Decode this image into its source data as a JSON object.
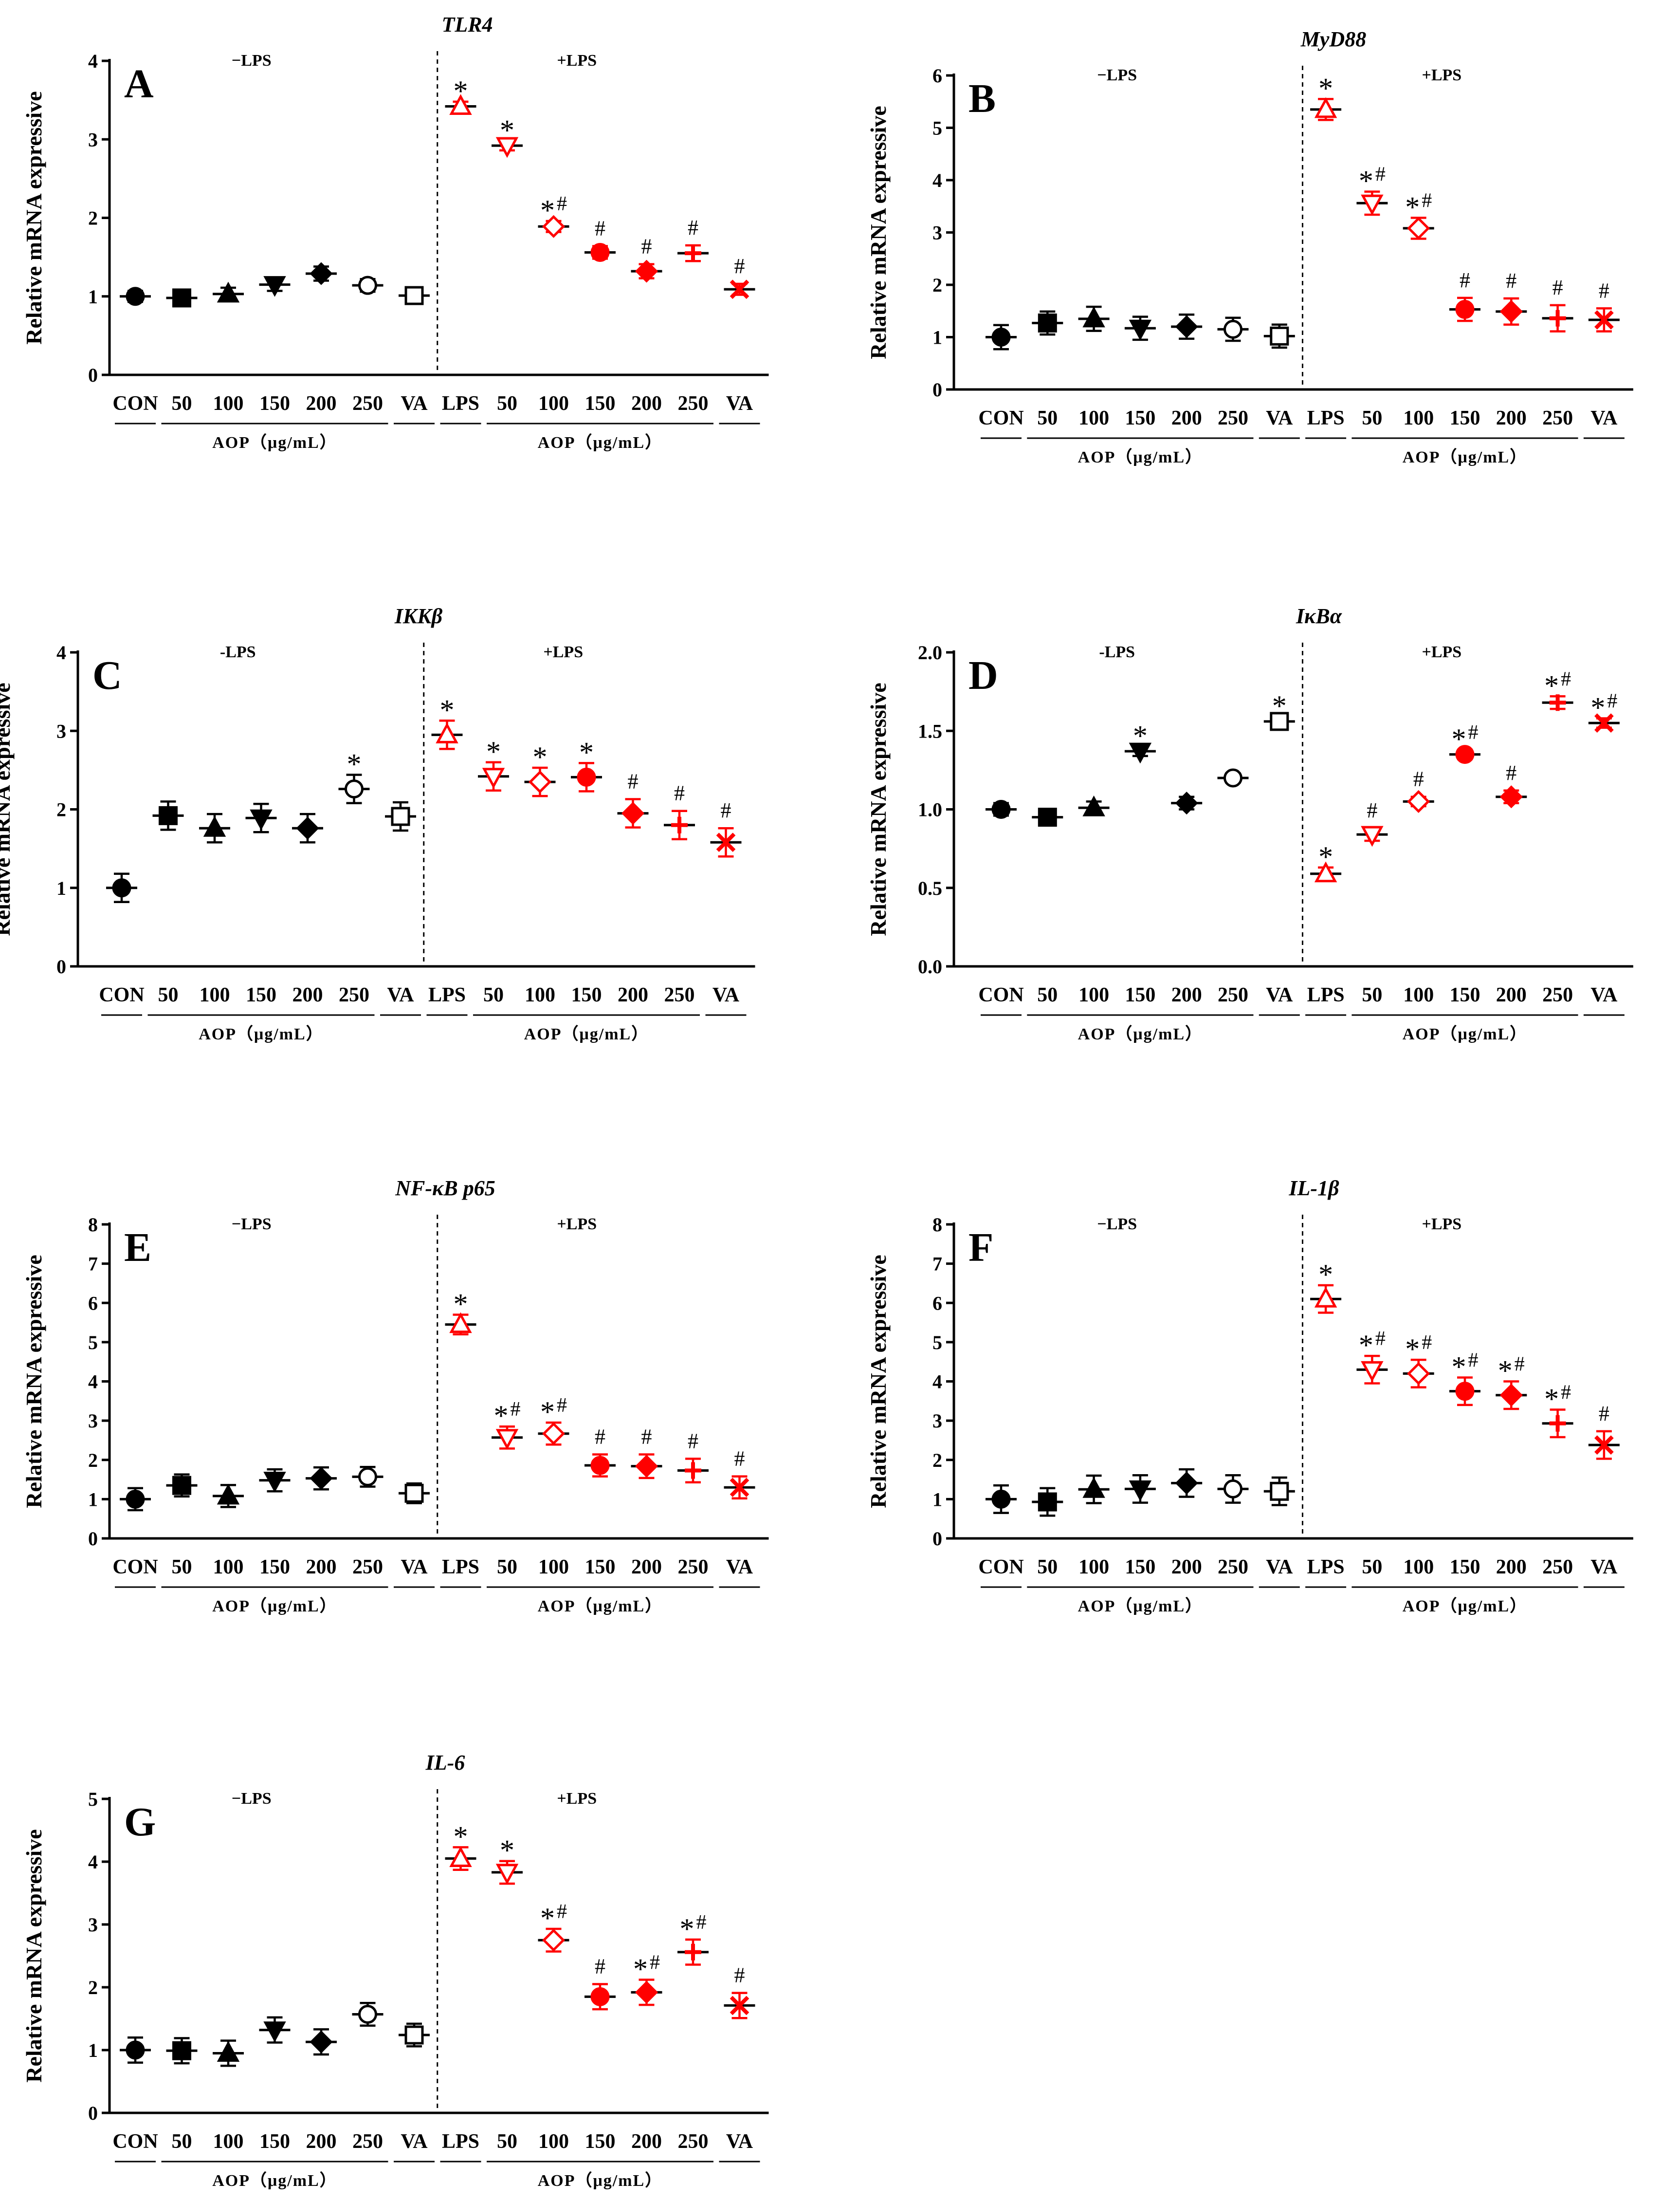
{
  "figure": {
    "ylabel": "Relative mRNA expressive",
    "categories": [
      "CON",
      "50",
      "100",
      "150",
      "200",
      "250",
      "VA",
      "LPS",
      "50",
      "100",
      "150",
      "200",
      "250",
      "VA"
    ],
    "group_label": "AOP（μg/mL）",
    "colors": {
      "control": "#000000",
      "lps": "#ff0000"
    }
  },
  "chart_data": [
    {
      "type": "scatter",
      "letter": "A",
      "title": "TLR4",
      "ylim": [
        0,
        4
      ],
      "ticks": [
        0,
        1,
        2,
        3,
        4
      ],
      "tick_labels": [
        "0",
        "1",
        "2",
        "3",
        "4"
      ],
      "minus_label": "−LPS",
      "plus_label": "+LPS",
      "values": [
        1.0,
        0.98,
        1.03,
        1.15,
        1.29,
        1.14,
        1.01,
        3.42,
        2.92,
        1.89,
        1.56,
        1.32,
        1.55,
        1.09
      ],
      "errors": [
        0.07,
        0.08,
        0.08,
        0.08,
        0.09,
        0.08,
        0.06,
        0.06,
        0.06,
        0.07,
        0.08,
        0.09,
        0.1,
        0.07
      ],
      "markers": [
        "circle",
        "square",
        "triangle",
        "tri-down",
        "diamond",
        "open-circle",
        "open-square",
        "open-triangle",
        "open-tri-down",
        "open-diamond",
        "circle",
        "diamond",
        "plus",
        "cross"
      ],
      "sig": [
        "",
        "",
        "",
        "",
        "",
        "",
        "",
        "*",
        "*",
        "*#",
        "#",
        "#",
        "#",
        "#"
      ]
    },
    {
      "type": "scatter",
      "letter": "B",
      "title": "MyD88",
      "ylim": [
        0,
        6
      ],
      "ticks": [
        0,
        1,
        2,
        3,
        4,
        5,
        6
      ],
      "tick_labels": [
        "0",
        "1",
        "2",
        "3",
        "4",
        "5",
        "6"
      ],
      "minus_label": "−LPS",
      "plus_label": "+LPS",
      "values": [
        1.0,
        1.27,
        1.35,
        1.17,
        1.2,
        1.15,
        1.02,
        5.35,
        3.56,
        3.08,
        1.53,
        1.49,
        1.36,
        1.33
      ],
      "errors": [
        0.23,
        0.22,
        0.23,
        0.22,
        0.23,
        0.22,
        0.22,
        0.2,
        0.22,
        0.2,
        0.22,
        0.25,
        0.25,
        0.22
      ],
      "markers": [
        "circle",
        "square",
        "triangle",
        "tri-down",
        "diamond",
        "open-circle",
        "open-square",
        "open-triangle",
        "open-tri-down",
        "open-diamond",
        "circle",
        "diamond",
        "plus",
        "cross"
      ],
      "sig": [
        "",
        "",
        "",
        "",
        "",
        "",
        "",
        "*",
        "*#",
        "*#",
        "#",
        "#",
        "#",
        "#"
      ]
    },
    {
      "type": "scatter",
      "letter": "C",
      "title": "IKKβ",
      "ylim": [
        0,
        4
      ],
      "ticks": [
        0,
        1,
        2,
        3,
        4
      ],
      "tick_labels": [
        "0",
        "1",
        "2",
        "3",
        "4"
      ],
      "minus_label": "-LPS",
      "plus_label": "+LPS",
      "values": [
        1.0,
        1.92,
        1.76,
        1.89,
        1.76,
        2.26,
        1.91,
        2.95,
        2.42,
        2.35,
        2.41,
        1.95,
        1.8,
        1.58
      ],
      "errors": [
        0.18,
        0.18,
        0.18,
        0.18,
        0.18,
        0.18,
        0.18,
        0.18,
        0.18,
        0.18,
        0.18,
        0.18,
        0.18,
        0.18
      ],
      "markers": [
        "circle",
        "square",
        "triangle",
        "tri-down",
        "diamond",
        "open-circle",
        "open-square",
        "open-triangle",
        "open-tri-down",
        "open-diamond",
        "circle",
        "diamond",
        "plus",
        "cross"
      ],
      "sig": [
        "",
        "",
        "",
        "",
        "",
        "*",
        "",
        "*",
        "*",
        "*",
        "*",
        "#",
        "#",
        "#"
      ]
    },
    {
      "type": "scatter",
      "letter": "D",
      "title": "IκBα",
      "ylim": [
        0,
        2
      ],
      "ticks": [
        0,
        0.5,
        1,
        1.5,
        2
      ],
      "tick_labels": [
        "0.0",
        "0.5",
        "1.0",
        "1.5",
        "2.0"
      ],
      "minus_label": "-LPS",
      "plus_label": "+LPS",
      "values": [
        1.0,
        0.95,
        1.01,
        1.37,
        1.04,
        1.2,
        1.56,
        0.59,
        0.84,
        1.05,
        1.35,
        1.08,
        1.68,
        1.55
      ],
      "errors": [
        0.04,
        0.04,
        0.04,
        0.03,
        0.04,
        0.03,
        0.03,
        0.04,
        0.04,
        0.03,
        0.03,
        0.04,
        0.04,
        0.03
      ],
      "markers": [
        "circle",
        "square",
        "triangle",
        "tri-down",
        "diamond",
        "open-circle",
        "open-square",
        "open-triangle",
        "open-tri-down",
        "open-diamond",
        "circle",
        "diamond",
        "plus",
        "cross"
      ],
      "sig": [
        "",
        "",
        "",
        "*",
        "",
        "",
        "*",
        "*",
        "#",
        "#",
        "*#",
        "#",
        "*#",
        "*#"
      ]
    },
    {
      "type": "scatter",
      "letter": "E",
      "title": "NF-κB p65",
      "ylim": [
        0,
        8
      ],
      "ticks": [
        0,
        1,
        2,
        3,
        4,
        5,
        6,
        7,
        8
      ],
      "tick_labels": [
        "0",
        "1",
        "2",
        "3",
        "4",
        "5",
        "6",
        "7",
        "8"
      ],
      "minus_label": "−LPS",
      "plus_label": "+LPS",
      "values": [
        1.0,
        1.35,
        1.08,
        1.48,
        1.53,
        1.57,
        1.15,
        5.45,
        2.57,
        2.67,
        1.86,
        1.84,
        1.73,
        1.3
      ],
      "errors": [
        0.28,
        0.28,
        0.28,
        0.28,
        0.28,
        0.25,
        0.25,
        0.25,
        0.28,
        0.28,
        0.28,
        0.3,
        0.3,
        0.28
      ],
      "markers": [
        "circle",
        "square",
        "triangle",
        "tri-down",
        "diamond",
        "open-circle",
        "open-square",
        "open-triangle",
        "open-tri-down",
        "open-diamond",
        "circle",
        "diamond",
        "plus",
        "cross"
      ],
      "sig": [
        "",
        "",
        "",
        "",
        "",
        "",
        "",
        "*",
        "*#",
        "*#",
        "#",
        "#",
        "#",
        "#"
      ]
    },
    {
      "type": "scatter",
      "letter": "F",
      "title": "IL-1β",
      "ylim": [
        0,
        8
      ],
      "ticks": [
        0,
        1,
        2,
        3,
        4,
        5,
        6,
        7,
        8
      ],
      "tick_labels": [
        "0",
        "1",
        "2",
        "3",
        "4",
        "5",
        "6",
        "7",
        "8"
      ],
      "minus_label": "−LPS",
      "plus_label": "+LPS",
      "values": [
        1.0,
        0.93,
        1.25,
        1.26,
        1.41,
        1.26,
        1.2,
        6.1,
        4.3,
        4.2,
        3.75,
        3.65,
        2.93,
        2.38
      ],
      "errors": [
        0.35,
        0.35,
        0.35,
        0.35,
        0.35,
        0.35,
        0.35,
        0.35,
        0.35,
        0.35,
        0.35,
        0.35,
        0.35,
        0.35
      ],
      "markers": [
        "circle",
        "square",
        "triangle",
        "tri-down",
        "diamond",
        "open-circle",
        "open-square",
        "open-triangle",
        "open-tri-down",
        "open-diamond",
        "circle",
        "diamond",
        "plus",
        "cross"
      ],
      "sig": [
        "",
        "",
        "",
        "",
        "",
        "",
        "",
        "*",
        "*#",
        "*#",
        "*#",
        "*#",
        "*#",
        "#"
      ]
    },
    {
      "type": "scatter",
      "letter": "G",
      "title": "IL-6",
      "ylim": [
        0,
        5
      ],
      "ticks": [
        0,
        1,
        2,
        3,
        4,
        5
      ],
      "tick_labels": [
        "0",
        "1",
        "2",
        "3",
        "4",
        "5"
      ],
      "minus_label": "−LPS",
      "plus_label": "+LPS",
      "values": [
        1.0,
        0.99,
        0.95,
        1.32,
        1.13,
        1.57,
        1.24,
        4.05,
        3.83,
        2.75,
        1.85,
        1.92,
        2.56,
        1.71
      ],
      "errors": [
        0.2,
        0.2,
        0.2,
        0.2,
        0.2,
        0.18,
        0.18,
        0.18,
        0.18,
        0.18,
        0.2,
        0.2,
        0.2,
        0.2
      ],
      "markers": [
        "circle",
        "square",
        "triangle",
        "tri-down",
        "diamond",
        "open-circle",
        "open-square",
        "open-triangle",
        "open-tri-down",
        "open-diamond",
        "circle",
        "diamond",
        "plus",
        "cross"
      ],
      "sig": [
        "",
        "",
        "",
        "",
        "",
        "",
        "",
        "*",
        "*",
        "*#",
        "#",
        "*#",
        "*#",
        "#"
      ]
    }
  ]
}
